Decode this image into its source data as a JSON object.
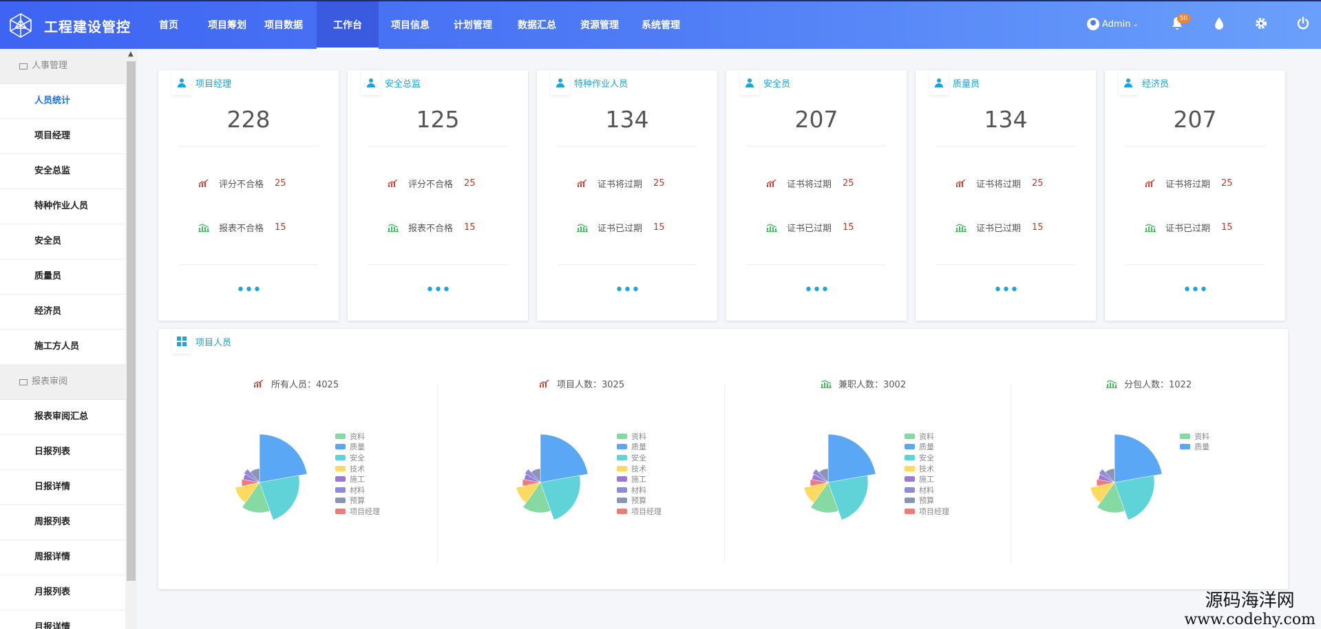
{
  "app": {
    "title": "工程建设管控"
  },
  "nav": [
    "首页",
    "项目筹划",
    "项目数据",
    "工作台",
    "项目信息",
    "计划管理",
    "数据汇总",
    "资源管理",
    "系统管理"
  ],
  "nav_active": 3,
  "header": {
    "user": "Admin",
    "notifications": "50"
  },
  "sidebar": {
    "group1": "人事管理",
    "items1": [
      "人员统计",
      "项目经理",
      "安全总监",
      "特种作业人员",
      "安全员",
      "质量员",
      "经济员",
      "施工方人员"
    ],
    "group2": "报表审阅",
    "items2": [
      "报表审阅汇总",
      "日报列表",
      "日报详情",
      "周报列表",
      "周报详情",
      "月报列表",
      "月报详情"
    ]
  },
  "cards": [
    {
      "title": "项目经理",
      "count": "228",
      "stats": [
        {
          "label": "评分不合格",
          "value": "25"
        },
        {
          "label": "报表不合格",
          "value": "15"
        }
      ],
      "more": "•••"
    },
    {
      "title": "安全总监",
      "count": "125",
      "stats": [
        {
          "label": "评分不合格",
          "value": "25"
        },
        {
          "label": "报表不合格",
          "value": "15"
        }
      ],
      "more": "•••"
    },
    {
      "title": "特种作业人员",
      "count": "134",
      "stats": [
        {
          "label": "证书将过期",
          "value": "25"
        },
        {
          "label": "证书已过期",
          "value": "15"
        }
      ],
      "more": "•••"
    },
    {
      "title": "安全员",
      "count": "207",
      "stats": [
        {
          "label": "证书将过期",
          "value": "25"
        },
        {
          "label": "证书已过期",
          "value": "15"
        }
      ],
      "more": "•••"
    },
    {
      "title": "质量员",
      "count": "134",
      "stats": [
        {
          "label": "证书将过期",
          "value": "25"
        },
        {
          "label": "证书已过期",
          "value": "15"
        }
      ],
      "more": "•••"
    },
    {
      "title": "经济员",
      "count": "207",
      "stats": [
        {
          "label": "证书将过期",
          "value": "25"
        },
        {
          "label": "证书已过期",
          "value": "15"
        }
      ],
      "more": "•••"
    }
  ],
  "panel": {
    "title": "项目人员"
  },
  "pies": [
    {
      "title": "所有人员：4025",
      "icon": "up-red"
    },
    {
      "title": "项目人数：3025",
      "icon": "up-red"
    },
    {
      "title": "兼职人数：3002",
      "icon": "chart-green"
    },
    {
      "title": "分包人数：1022",
      "icon": "chart-green"
    }
  ],
  "legend": [
    "资料",
    "质量",
    "安全",
    "技术",
    "施工",
    "材料",
    "预算",
    "项目经理"
  ],
  "colors": [
    "#86d9a2",
    "#5aa8f5",
    "#5fd3d8",
    "#ffd960",
    "#9b7ad6",
    "#8f8bd9",
    "#8a94b4",
    "#ef7a7a"
  ],
  "watermark": {
    "line1": "源码海洋网",
    "line2": "www.codehy.com"
  }
}
